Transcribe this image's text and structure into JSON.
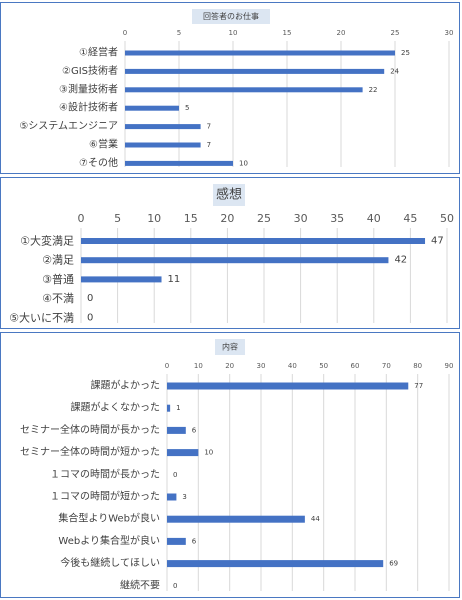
{
  "colors": {
    "bar": "#4472C4",
    "grid": "#d9d9d9",
    "border": "#4a78c2",
    "title_bg": "#dce6f2"
  },
  "chart_data": [
    {
      "type": "bar",
      "orientation": "horizontal",
      "title": "回答者のお仕事",
      "categories": [
        "①経営者",
        "②GIS技術者",
        "③測量技術者",
        "④設計技術者",
        "⑤システムエンジニア",
        "⑥営業",
        "⑦その他"
      ],
      "values": [
        25,
        24,
        22,
        5,
        7,
        7,
        10
      ],
      "xlim": [
        0,
        30
      ],
      "ticks": [
        0,
        5,
        10,
        15,
        20,
        25,
        30
      ],
      "grid": true,
      "data_labels": true
    },
    {
      "type": "bar",
      "orientation": "horizontal",
      "title": "感想",
      "categories": [
        "①大変満足",
        "②満足",
        "③普通",
        "④不満",
        "⑤大いに不満"
      ],
      "values": [
        47,
        42,
        11,
        0,
        0
      ],
      "xlim": [
        0,
        50
      ],
      "ticks": [
        0,
        5,
        10,
        15,
        20,
        25,
        30,
        35,
        40,
        45,
        50
      ],
      "grid": true,
      "data_labels": true
    },
    {
      "type": "bar",
      "orientation": "horizontal",
      "title": "内容",
      "categories": [
        "課題がよかった",
        "課題がよくなかった",
        "セミナー全体の時間が長かった",
        "セミナー全体の時間が短かった",
        "１コマの時間が長かった",
        "１コマの時間が短かった",
        "集合型よりWebが良い",
        "Webより集合型が良い",
        "今後も継続してほしい",
        "継続不要"
      ],
      "values": [
        77,
        1,
        6,
        10,
        0,
        3,
        44,
        6,
        69,
        0
      ],
      "xlim": [
        0,
        90
      ],
      "ticks": [
        0,
        10,
        20,
        30,
        40,
        50,
        60,
        70,
        80,
        90
      ],
      "grid": true,
      "data_labels": true
    }
  ]
}
